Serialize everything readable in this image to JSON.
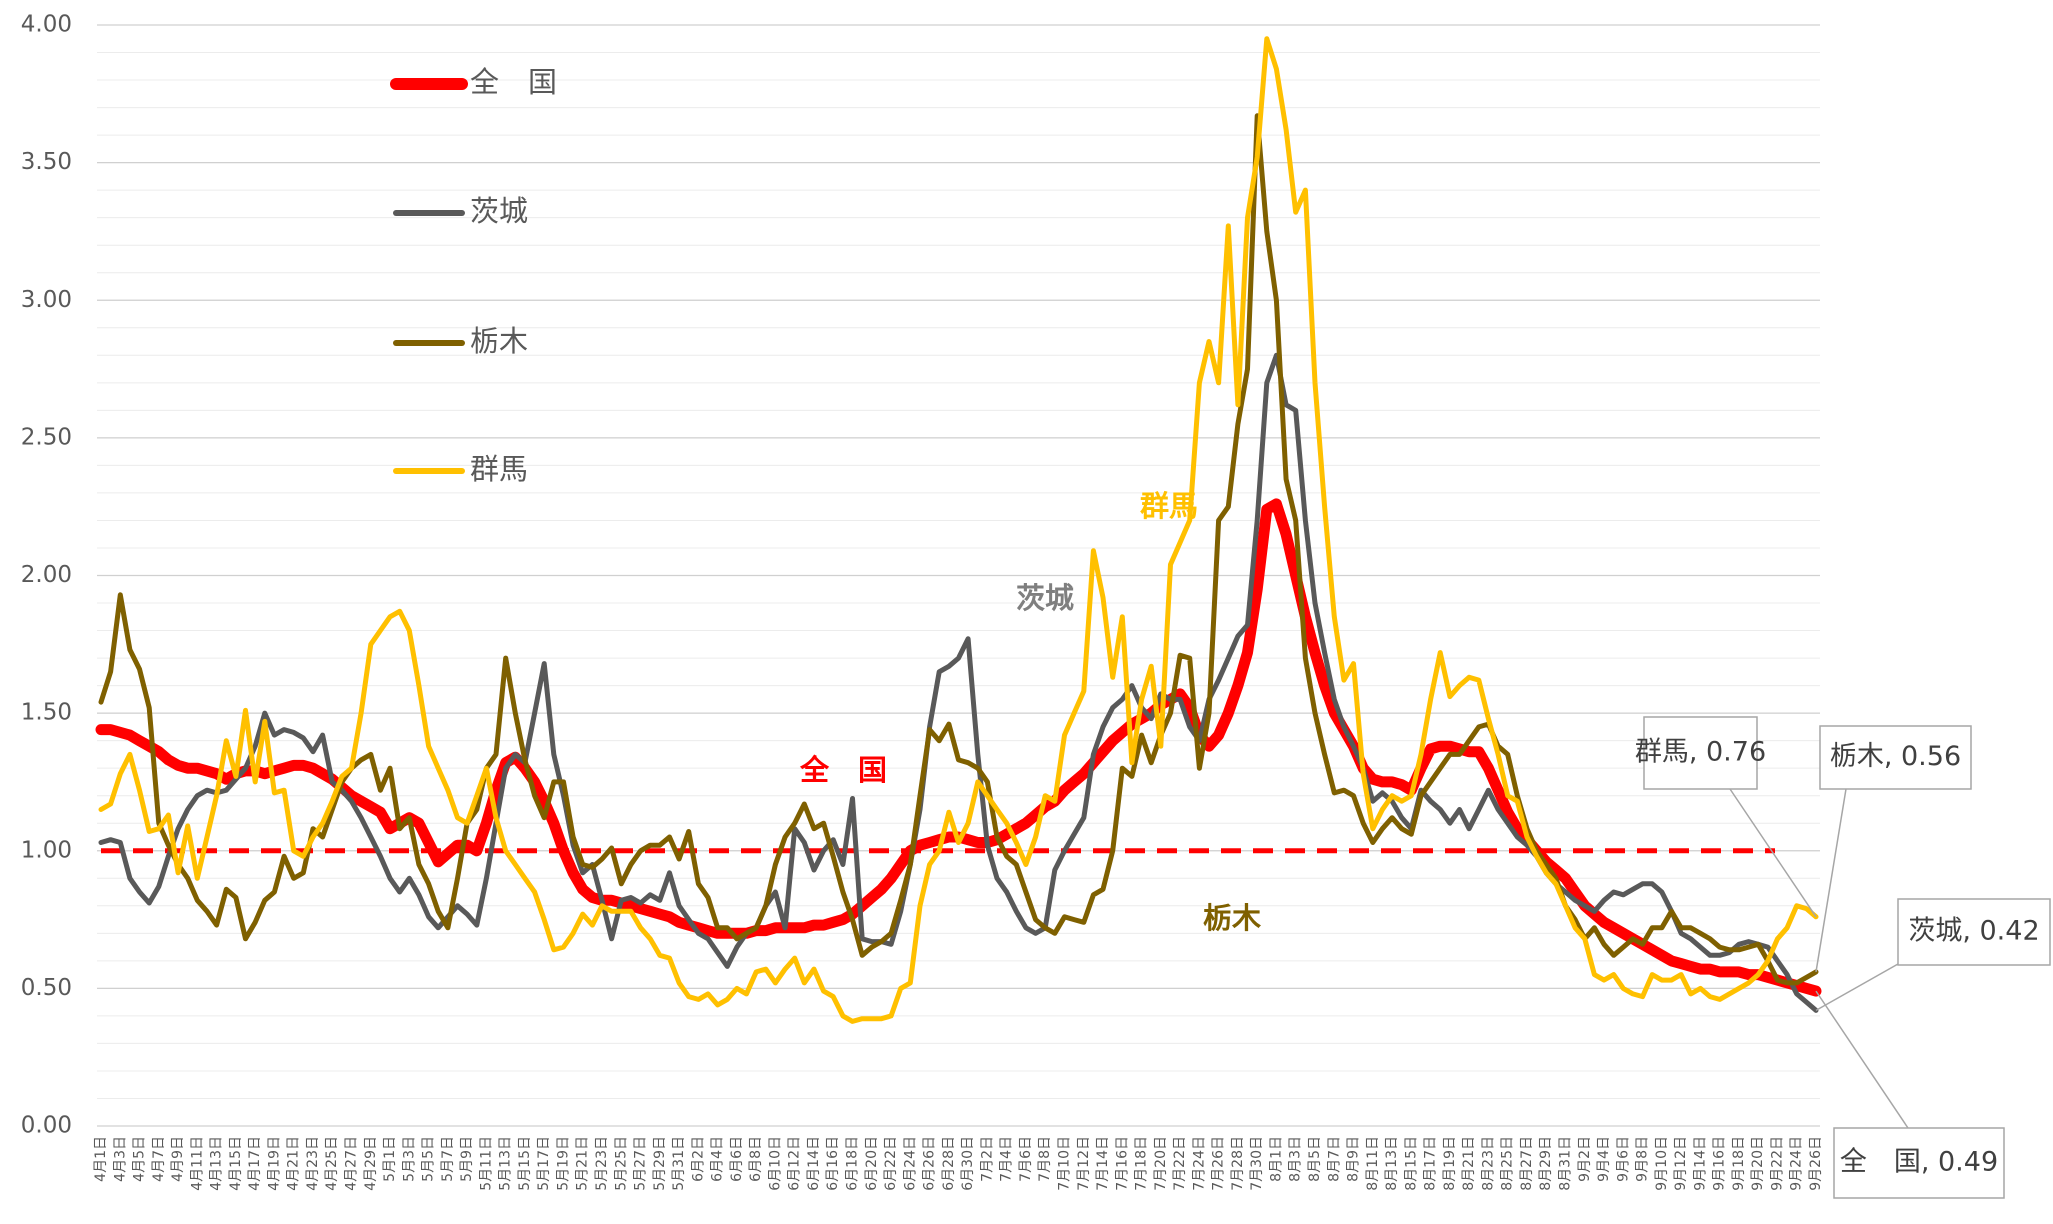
{
  "chart_data": {
    "type": "line",
    "categories": [
      "4月1日",
      null,
      "4月3日",
      null,
      "4月5日",
      null,
      "4月7日",
      null,
      "4月9日",
      null,
      "4月11日",
      null,
      "4月13日",
      null,
      "4月15日",
      null,
      "4月17日",
      null,
      "4月19日",
      null,
      "4月21日",
      null,
      "4月23日",
      null,
      "4月25日",
      null,
      "4月27日",
      null,
      "4月29日",
      null,
      "5月1日",
      null,
      "5月3日",
      null,
      "5月5日",
      null,
      "5月7日",
      null,
      "5月9日",
      null,
      "5月11日",
      null,
      "5月13日",
      null,
      "5月15日",
      null,
      "5月17日",
      null,
      "5月19日",
      null,
      "5月21日",
      null,
      "5月23日",
      null,
      "5月25日",
      null,
      "5月27日",
      null,
      "5月29日",
      null,
      "5月31日",
      null,
      "6月2日",
      null,
      "6月4日",
      null,
      "6月6日",
      null,
      "6月8日",
      null,
      "6月10日",
      null,
      "6月12日",
      null,
      "6月14日",
      null,
      "6月16日",
      null,
      "6月18日",
      null,
      "6月20日",
      null,
      "6月22日",
      null,
      "6月24日",
      null,
      "6月26日",
      null,
      "6月28日",
      null,
      "6月30日",
      null,
      "7月2日",
      null,
      "7月4日",
      null,
      "7月6日",
      null,
      "7月8日",
      null,
      "7月10日",
      null,
      "7月12日",
      null,
      "7月14日",
      null,
      "7月16日",
      null,
      "7月18日",
      null,
      "7月20日",
      null,
      "7月22日",
      null,
      "7月24日",
      null,
      "7月26日",
      null,
      "7月28日",
      null,
      "7月30日",
      null,
      "8月1日",
      null,
      "8月3日",
      null,
      "8月5日",
      null,
      "8月7日",
      null,
      "8月9日",
      null,
      "8月11日",
      null,
      "8月13日",
      null,
      "8月15日",
      null,
      "8月17日",
      null,
      "8月19日",
      null,
      "8月21日",
      null,
      "8月23日",
      null,
      "8月25日",
      null,
      "8月27日",
      null,
      "8月29日",
      null,
      "8月31日",
      null,
      "9月2日",
      null,
      "9月4日",
      null,
      "9月6日",
      null,
      "9月8日",
      null,
      "9月10日",
      null,
      "9月12日",
      null,
      "9月14日",
      null,
      "9月16日",
      null,
      "9月18日",
      null,
      "9月20日",
      null,
      "9月22日",
      null,
      "9月24日",
      null,
      "9月26日"
    ],
    "series": [
      {
        "name": "全　国",
        "color": "#ff0000",
        "end_label": "全　国, 0.49",
        "values": [
          1.44,
          1.44,
          1.43,
          1.42,
          1.4,
          1.38,
          1.36,
          1.33,
          1.31,
          1.3,
          1.3,
          1.29,
          1.28,
          1.26,
          1.28,
          1.29,
          1.29,
          1.28,
          1.29,
          1.3,
          1.31,
          1.31,
          1.3,
          1.28,
          1.26,
          1.23,
          1.2,
          1.18,
          1.16,
          1.14,
          1.08,
          1.1,
          1.12,
          1.1,
          1.03,
          0.96,
          0.99,
          1.02,
          1.02,
          1.0,
          1.1,
          1.22,
          1.32,
          1.34,
          1.3,
          1.25,
          1.18,
          1.1,
          1.0,
          0.92,
          0.86,
          0.83,
          0.82,
          0.82,
          0.81,
          0.8,
          0.79,
          0.78,
          0.77,
          0.76,
          0.74,
          0.73,
          0.72,
          0.71,
          0.7,
          0.7,
          0.7,
          0.7,
          0.71,
          0.71,
          0.72,
          0.72,
          0.72,
          0.72,
          0.73,
          0.73,
          0.74,
          0.75,
          0.77,
          0.8,
          0.83,
          0.86,
          0.9,
          0.95,
          1.0,
          1.02,
          1.03,
          1.04,
          1.05,
          1.05,
          1.04,
          1.03,
          1.03,
          1.04,
          1.06,
          1.08,
          1.1,
          1.13,
          1.16,
          1.18,
          1.22,
          1.25,
          1.28,
          1.32,
          1.36,
          1.4,
          1.43,
          1.46,
          1.48,
          1.5,
          1.53,
          1.55,
          1.57,
          1.52,
          1.42,
          1.38,
          1.42,
          1.5,
          1.6,
          1.72,
          1.95,
          2.24,
          2.26,
          2.15,
          2.0,
          1.85,
          1.72,
          1.6,
          1.5,
          1.44,
          1.38,
          1.3,
          1.26,
          1.25,
          1.25,
          1.24,
          1.22,
          1.3,
          1.37,
          1.38,
          1.38,
          1.37,
          1.36,
          1.36,
          1.3,
          1.22,
          1.14,
          1.08,
          1.04,
          1.0,
          0.96,
          0.93,
          0.9,
          0.85,
          0.8,
          0.77,
          0.74,
          0.72,
          0.7,
          0.68,
          0.66,
          0.64,
          0.62,
          0.6,
          0.59,
          0.58,
          0.57,
          0.57,
          0.56,
          0.56,
          0.56,
          0.55,
          0.55,
          0.54,
          0.53,
          0.52,
          0.51,
          0.5,
          0.49
        ]
      },
      {
        "name": "茨城",
        "color": "#595959",
        "end_label": "茨城, 0.42",
        "values": [
          1.03,
          1.04,
          1.03,
          0.9,
          0.85,
          0.81,
          0.87,
          0.98,
          1.08,
          1.15,
          1.2,
          1.22,
          1.21,
          1.22,
          1.26,
          1.3,
          1.38,
          1.5,
          1.42,
          1.44,
          1.43,
          1.41,
          1.36,
          1.42,
          1.25,
          1.22,
          1.18,
          1.12,
          1.05,
          0.98,
          0.9,
          0.85,
          0.9,
          0.84,
          0.76,
          0.72,
          0.76,
          0.8,
          0.77,
          0.73,
          0.9,
          1.1,
          1.3,
          1.35,
          1.32,
          1.5,
          1.68,
          1.35,
          1.2,
          1.02,
          0.92,
          0.95,
          0.82,
          0.68,
          0.82,
          0.83,
          0.81,
          0.84,
          0.82,
          0.92,
          0.8,
          0.75,
          0.7,
          0.68,
          0.63,
          0.58,
          0.65,
          0.7,
          0.72,
          0.8,
          0.85,
          0.72,
          1.08,
          1.03,
          0.93,
          1.0,
          1.04,
          0.95,
          1.19,
          0.68,
          0.67,
          0.67,
          0.66,
          0.78,
          0.95,
          1.15,
          1.45,
          1.65,
          1.67,
          1.7,
          1.77,
          1.35,
          1.02,
          0.9,
          0.85,
          0.78,
          0.72,
          0.7,
          0.72,
          0.93,
          1.0,
          1.06,
          1.12,
          1.35,
          1.45,
          1.52,
          1.55,
          1.6,
          1.52,
          1.48,
          1.57,
          1.55,
          1.55,
          1.45,
          1.4,
          1.55,
          1.62,
          1.7,
          1.78,
          1.82,
          2.2,
          2.7,
          2.8,
          2.62,
          2.6,
          2.2,
          1.9,
          1.72,
          1.55,
          1.45,
          1.38,
          1.3,
          1.18,
          1.21,
          1.18,
          1.12,
          1.08,
          1.22,
          1.18,
          1.15,
          1.1,
          1.15,
          1.08,
          1.15,
          1.22,
          1.15,
          1.1,
          1.05,
          1.02,
          0.98,
          0.92,
          0.88,
          0.85,
          0.82,
          0.8,
          0.78,
          0.82,
          0.85,
          0.84,
          0.86,
          0.88,
          0.88,
          0.85,
          0.78,
          0.7,
          0.68,
          0.65,
          0.62,
          0.62,
          0.63,
          0.66,
          0.67,
          0.66,
          0.65,
          0.6,
          0.55,
          0.48,
          0.45,
          0.42
        ]
      },
      {
        "name": "栃木",
        "color": "#7f6000",
        "end_label": "栃木, 0.56",
        "values": [
          1.54,
          1.65,
          1.93,
          1.73,
          1.66,
          1.52,
          1.1,
          1.02,
          0.95,
          0.9,
          0.82,
          0.78,
          0.73,
          0.86,
          0.83,
          0.68,
          0.74,
          0.82,
          0.85,
          0.98,
          0.9,
          0.92,
          1.08,
          1.05,
          1.15,
          1.25,
          1.3,
          1.33,
          1.35,
          1.22,
          1.3,
          1.08,
          1.12,
          0.95,
          0.88,
          0.78,
          0.72,
          0.9,
          1.1,
          1.15,
          1.3,
          1.35,
          1.7,
          1.5,
          1.33,
          1.2,
          1.12,
          1.25,
          1.25,
          1.05,
          0.95,
          0.94,
          0.97,
          1.01,
          0.88,
          0.95,
          1.0,
          1.02,
          1.02,
          1.05,
          0.97,
          1.07,
          0.88,
          0.83,
          0.72,
          0.72,
          0.68,
          0.7,
          0.72,
          0.8,
          0.95,
          1.05,
          1.1,
          1.17,
          1.08,
          1.1,
          0.98,
          0.85,
          0.75,
          0.62,
          0.65,
          0.67,
          0.7,
          0.82,
          0.95,
          1.2,
          1.44,
          1.4,
          1.46,
          1.33,
          1.32,
          1.3,
          1.25,
          1.05,
          0.98,
          0.95,
          0.85,
          0.75,
          0.72,
          0.7,
          0.76,
          0.75,
          0.74,
          0.84,
          0.86,
          1.0,
          1.3,
          1.27,
          1.42,
          1.32,
          1.42,
          1.5,
          1.71,
          1.7,
          1.3,
          1.5,
          2.2,
          2.25,
          2.55,
          2.75,
          3.67,
          3.25,
          3.0,
          2.35,
          2.2,
          1.7,
          1.5,
          1.35,
          1.21,
          1.22,
          1.2,
          1.1,
          1.03,
          1.08,
          1.12,
          1.08,
          1.06,
          1.2,
          1.25,
          1.3,
          1.35,
          1.35,
          1.4,
          1.45,
          1.46,
          1.38,
          1.35,
          1.2,
          1.08,
          1.0,
          0.95,
          0.9,
          0.8,
          0.75,
          0.68,
          0.72,
          0.66,
          0.62,
          0.65,
          0.68,
          0.66,
          0.72,
          0.72,
          0.78,
          0.72,
          0.72,
          0.7,
          0.68,
          0.65,
          0.64,
          0.64,
          0.65,
          0.66,
          0.6,
          0.53,
          0.52,
          0.52,
          0.54,
          0.56
        ]
      },
      {
        "name": "群馬",
        "color": "#ffc000",
        "end_label": "群馬, 0.76",
        "values": [
          1.15,
          1.17,
          1.28,
          1.35,
          1.22,
          1.07,
          1.08,
          1.13,
          0.92,
          1.09,
          0.9,
          1.05,
          1.2,
          1.4,
          1.27,
          1.51,
          1.25,
          1.47,
          1.21,
          1.22,
          1.0,
          0.98,
          1.05,
          1.1,
          1.18,
          1.27,
          1.3,
          1.5,
          1.75,
          1.8,
          1.85,
          1.87,
          1.8,
          1.6,
          1.38,
          1.3,
          1.22,
          1.12,
          1.1,
          1.2,
          1.3,
          1.12,
          1.0,
          0.95,
          0.9,
          0.85,
          0.75,
          0.64,
          0.65,
          0.7,
          0.77,
          0.73,
          0.8,
          0.78,
          0.78,
          0.78,
          0.72,
          0.68,
          0.62,
          0.61,
          0.52,
          0.47,
          0.46,
          0.48,
          0.44,
          0.46,
          0.5,
          0.48,
          0.56,
          0.57,
          0.52,
          0.57,
          0.61,
          0.52,
          0.57,
          0.49,
          0.47,
          0.4,
          0.38,
          0.39,
          0.39,
          0.39,
          0.4,
          0.5,
          0.52,
          0.8,
          0.95,
          1.0,
          1.14,
          1.03,
          1.1,
          1.25,
          1.2,
          1.15,
          1.1,
          1.03,
          0.95,
          1.05,
          1.2,
          1.18,
          1.42,
          1.5,
          1.58,
          2.09,
          1.92,
          1.63,
          1.85,
          1.32,
          1.55,
          1.67,
          1.38,
          2.04,
          2.12,
          2.2,
          2.7,
          2.85,
          2.7,
          3.27,
          2.62,
          3.3,
          3.52,
          3.95,
          3.84,
          3.62,
          3.32,
          3.4,
          2.7,
          2.25,
          1.85,
          1.62,
          1.68,
          1.28,
          1.08,
          1.15,
          1.2,
          1.18,
          1.2,
          1.35,
          1.55,
          1.72,
          1.56,
          1.6,
          1.63,
          1.62,
          1.48,
          1.35,
          1.2,
          1.18,
          1.05,
          0.98,
          0.92,
          0.88,
          0.8,
          0.72,
          0.68,
          0.55,
          0.53,
          0.55,
          0.5,
          0.48,
          0.47,
          0.55,
          0.53,
          0.53,
          0.55,
          0.48,
          0.5,
          0.47,
          0.46,
          0.48,
          0.5,
          0.52,
          0.55,
          0.6,
          0.68,
          0.72,
          0.8,
          0.79,
          0.76
        ]
      }
    ],
    "ylim": [
      0,
      4
    ],
    "yticks": [
      {
        "value": 0,
        "label": "0.00"
      },
      {
        "value": 0.5,
        "label": "0.50"
      },
      {
        "value": 1,
        "label": "1.00"
      },
      {
        "value": 1.5,
        "label": "1.50"
      },
      {
        "value": 2,
        "label": "2.00"
      },
      {
        "value": 2.5,
        "label": "2.50"
      },
      {
        "value": 3,
        "label": "3.00"
      },
      {
        "value": 3.5,
        "label": "3.50"
      },
      {
        "value": 4,
        "label": "4.00"
      }
    ],
    "minor_grid_step": 0.1,
    "grid": true,
    "reference_line": {
      "value": 1,
      "color": "#ff0000"
    },
    "annotations": [
      {
        "text": "全　国",
        "color": "#ff0000"
      },
      {
        "text": "茨城",
        "color": "#7f7f7f"
      },
      {
        "text": "群馬",
        "color": "#ffc000"
      },
      {
        "text": "栃木",
        "color": "#7f6000"
      }
    ]
  }
}
